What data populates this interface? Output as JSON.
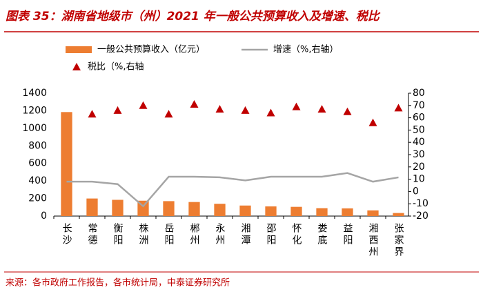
{
  "chart_data": {
    "type": "bar",
    "title": "图表 35：湖南省地级市（州）2021 年一般公共预算收入及增速、税比",
    "source": "来源：各市政府工作报告，各市统计局，中泰证券研究所",
    "categories": [
      "长沙",
      "常德",
      "衡阳",
      "株洲",
      "岳阳",
      "郴州",
      "永州",
      "湘潭",
      "邵阳",
      "怀化",
      "娄底",
      "益阳",
      "湘西州",
      "张家界"
    ],
    "series": [
      {
        "name": "一般公共预算收入（亿元）",
        "type": "bar",
        "color": "#ed7d31",
        "values": [
          1185,
          200,
          185,
          175,
          170,
          160,
          140,
          120,
          110,
          105,
          90,
          88,
          65,
          35
        ]
      },
      {
        "name": "增速（%,右轴）",
        "type": "line",
        "axis": "y2",
        "color": "#a5a5a5",
        "values": [
          8,
          8,
          6,
          -12,
          12,
          12,
          11.5,
          9,
          12,
          12,
          12,
          15,
          8,
          11.5
        ]
      },
      {
        "name": "税比（%,右轴",
        "type": "scatter",
        "axis": "y2",
        "color": "#c00000",
        "values": [
          null,
          63,
          66,
          70,
          63,
          71,
          67,
          66,
          64,
          69,
          67,
          65,
          56,
          68
        ]
      }
    ],
    "ylim": [
      0,
      1400
    ],
    "yticks": [
      0,
      200,
      400,
      600,
      800,
      1000,
      1200,
      1400
    ],
    "y2lim": [
      -20,
      80
    ],
    "y2ticks": [
      -20,
      -10,
      0,
      10,
      20,
      30,
      40,
      50,
      60,
      70,
      80
    ]
  }
}
